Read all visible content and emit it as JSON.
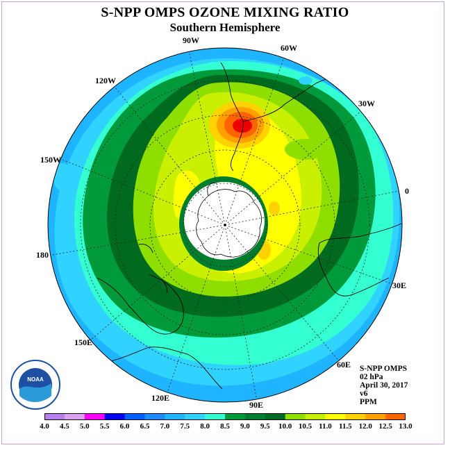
{
  "title": "S-NPP OMPS OZONE MIXING RATIO",
  "subtitle": "Southern Hemisphere",
  "longitude_labels": {
    "lon_90w": "90W",
    "lon_60w": "60W",
    "lon_30w": "30W",
    "lon_0": "0",
    "lon_30e": "30E",
    "lon_60e": "60E",
    "lon_90e": "90E",
    "lon_120e": "120E",
    "lon_150e": "150E",
    "lon_180": "180",
    "lon_150w": "150W",
    "lon_120w": "120W"
  },
  "info": {
    "instrument": "S-NPP OMPS",
    "pressure": "02 hPa",
    "date": "April 30, 2017",
    "version": "v6",
    "units": "PPM"
  },
  "logo_text": "NOAA",
  "colorbar": {
    "ticks": [
      "4.0",
      "4.5",
      "5.0",
      "5.5",
      "6.0",
      "6.5",
      "7.0",
      "7.5",
      "8.0",
      "8.5",
      "9.0",
      "9.5",
      "10.0",
      "10.5",
      "11.0",
      "11.5",
      "12.0",
      "12.5",
      "13.0"
    ],
    "colors": [
      "#b87fe8",
      "#dba3ef",
      "#ff00ff",
      "#0000ee",
      "#0060ff",
      "#1c8cff",
      "#1eb4ff",
      "#30d2ff",
      "#33ffd2",
      "#009a3a",
      "#007e2e",
      "#006a1f",
      "#8ede00",
      "#c8f000",
      "#ffff00",
      "#ffd200",
      "#ffa000",
      "#ff6400",
      "#ee0000",
      "#8b5a2b"
    ]
  },
  "map_colors": {
    "ring_outer": "#1eb4ff",
    "ring_6_5": "#30d2ff",
    "ring_8": "#33ffd2",
    "ring_8_5": "#009a3a",
    "ring_9": "#006a1f",
    "ring_9_5": "#8ede00",
    "ring_10": "#c8f000",
    "ring_10_5": "#ffff00",
    "max_11": "#ffd200",
    "max_11_5": "#ffa000",
    "max_12": "#ff6400",
    "max_12_5": "#ee0000",
    "polar_nodata": "#ffffff"
  }
}
